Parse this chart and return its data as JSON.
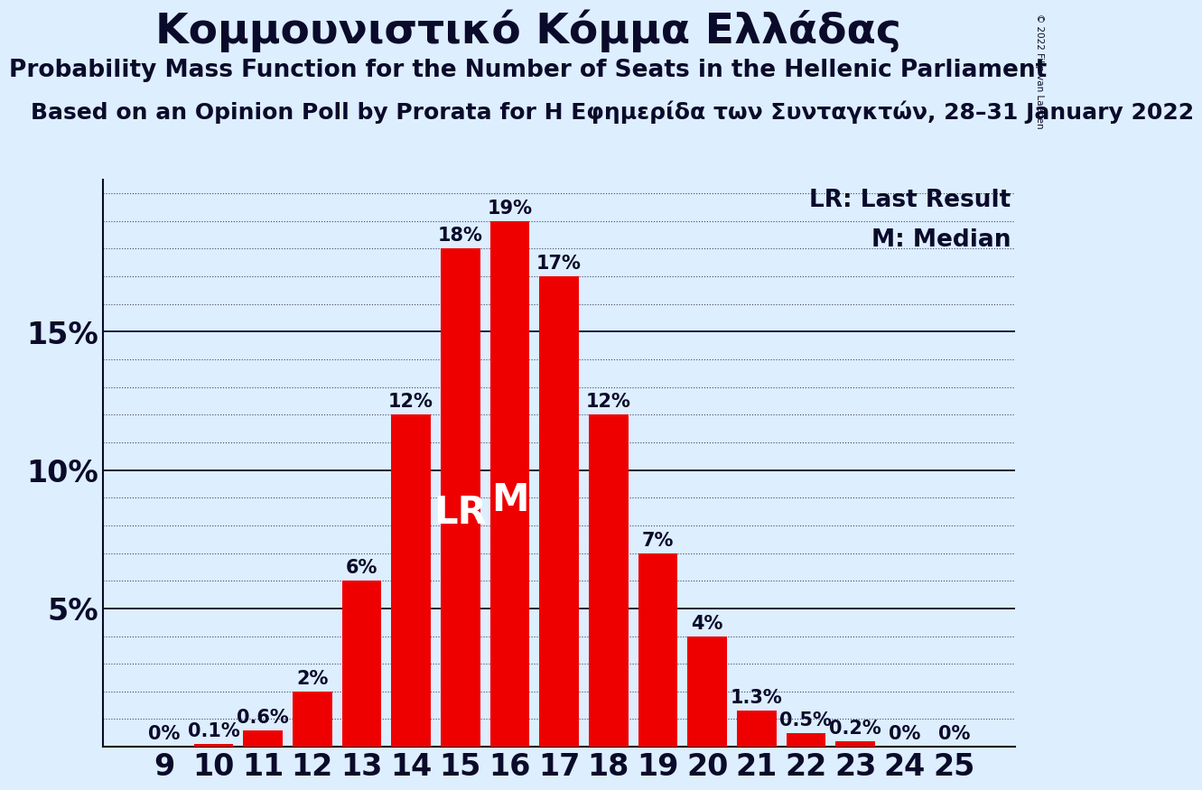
{
  "title": "Κομμουνιστικό Κόμμα Ελλάδας",
  "subtitle": "Probability Mass Function for the Number of Seats in the Hellenic Parliament",
  "source": "Based on an Opinion Poll by Prorata for Η Εφημερίδα των Συνταγκτών, 28–31 January 2022",
  "copyright": "© 2022 Filip van Laenen",
  "seats": [
    9,
    10,
    11,
    12,
    13,
    14,
    15,
    16,
    17,
    18,
    19,
    20,
    21,
    22,
    23,
    24,
    25
  ],
  "probabilities": [
    0.0,
    0.1,
    0.6,
    2.0,
    6.0,
    12.0,
    18.0,
    19.0,
    17.0,
    12.0,
    7.0,
    4.0,
    1.3,
    0.5,
    0.2,
    0.0,
    0.0
  ],
  "bar_color": "#ee0000",
  "background_color": "#ddeeff",
  "text_color": "#0a0a2a",
  "lr_seat": 15,
  "median_seat": 16,
  "ylim": [
    0,
    20.5
  ],
  "yticks": [
    5,
    10,
    15
  ],
  "ytick_labels": [
    "5%",
    "10%",
    "15%"
  ],
  "legend_lr": "LR: Last Result",
  "legend_m": "M: Median",
  "title_fontsize": 34,
  "subtitle_fontsize": 19,
  "source_fontsize": 18,
  "bar_label_fontsize": 15,
  "axis_tick_fontsize": 24,
  "legend_fontsize": 19,
  "lr_m_fontsize": 30
}
